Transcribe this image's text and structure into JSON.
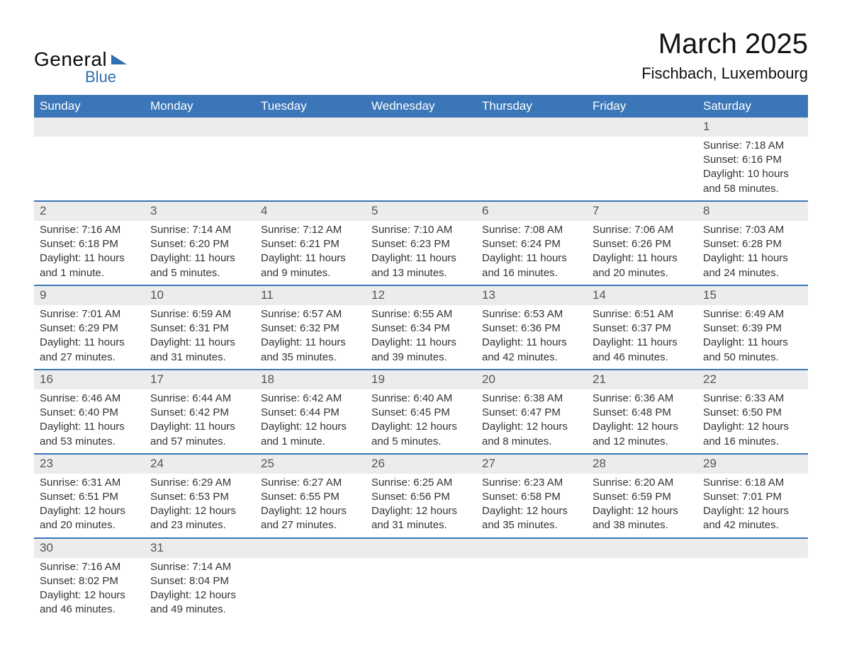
{
  "logo": {
    "general": "General",
    "blue": "Blue"
  },
  "title": {
    "month": "March 2025",
    "location": "Fischbach, Luxembourg"
  },
  "colors": {
    "brand": "#2f6fb3",
    "header_bg": "#3a76b8",
    "header_text": "#ffffff",
    "daynum_bg": "#ececec",
    "daynum_text": "#555555",
    "body_text": "#333333",
    "row_divider": "#3a76b8",
    "page_bg": "#ffffff"
  },
  "typography": {
    "month_fontsize_pt": 30,
    "location_fontsize_pt": 16,
    "header_fontsize_pt": 13,
    "daynum_fontsize_pt": 13,
    "body_fontsize_pt": 11
  },
  "structure": {
    "type": "calendar-table",
    "cols": 7,
    "rows": 6
  },
  "weekdays": [
    "Sunday",
    "Monday",
    "Tuesday",
    "Wednesday",
    "Thursday",
    "Friday",
    "Saturday"
  ],
  "weeks": [
    [
      null,
      null,
      null,
      null,
      null,
      null,
      {
        "d": "1",
        "sr": "Sunrise: 7:18 AM",
        "ss": "Sunset: 6:16 PM",
        "dl1": "Daylight: 10 hours",
        "dl2": "and 58 minutes."
      }
    ],
    [
      {
        "d": "2",
        "sr": "Sunrise: 7:16 AM",
        "ss": "Sunset: 6:18 PM",
        "dl1": "Daylight: 11 hours",
        "dl2": "and 1 minute."
      },
      {
        "d": "3",
        "sr": "Sunrise: 7:14 AM",
        "ss": "Sunset: 6:20 PM",
        "dl1": "Daylight: 11 hours",
        "dl2": "and 5 minutes."
      },
      {
        "d": "4",
        "sr": "Sunrise: 7:12 AM",
        "ss": "Sunset: 6:21 PM",
        "dl1": "Daylight: 11 hours",
        "dl2": "and 9 minutes."
      },
      {
        "d": "5",
        "sr": "Sunrise: 7:10 AM",
        "ss": "Sunset: 6:23 PM",
        "dl1": "Daylight: 11 hours",
        "dl2": "and 13 minutes."
      },
      {
        "d": "6",
        "sr": "Sunrise: 7:08 AM",
        "ss": "Sunset: 6:24 PM",
        "dl1": "Daylight: 11 hours",
        "dl2": "and 16 minutes."
      },
      {
        "d": "7",
        "sr": "Sunrise: 7:06 AM",
        "ss": "Sunset: 6:26 PM",
        "dl1": "Daylight: 11 hours",
        "dl2": "and 20 minutes."
      },
      {
        "d": "8",
        "sr": "Sunrise: 7:03 AM",
        "ss": "Sunset: 6:28 PM",
        "dl1": "Daylight: 11 hours",
        "dl2": "and 24 minutes."
      }
    ],
    [
      {
        "d": "9",
        "sr": "Sunrise: 7:01 AM",
        "ss": "Sunset: 6:29 PM",
        "dl1": "Daylight: 11 hours",
        "dl2": "and 27 minutes."
      },
      {
        "d": "10",
        "sr": "Sunrise: 6:59 AM",
        "ss": "Sunset: 6:31 PM",
        "dl1": "Daylight: 11 hours",
        "dl2": "and 31 minutes."
      },
      {
        "d": "11",
        "sr": "Sunrise: 6:57 AM",
        "ss": "Sunset: 6:32 PM",
        "dl1": "Daylight: 11 hours",
        "dl2": "and 35 minutes."
      },
      {
        "d": "12",
        "sr": "Sunrise: 6:55 AM",
        "ss": "Sunset: 6:34 PM",
        "dl1": "Daylight: 11 hours",
        "dl2": "and 39 minutes."
      },
      {
        "d": "13",
        "sr": "Sunrise: 6:53 AM",
        "ss": "Sunset: 6:36 PM",
        "dl1": "Daylight: 11 hours",
        "dl2": "and 42 minutes."
      },
      {
        "d": "14",
        "sr": "Sunrise: 6:51 AM",
        "ss": "Sunset: 6:37 PM",
        "dl1": "Daylight: 11 hours",
        "dl2": "and 46 minutes."
      },
      {
        "d": "15",
        "sr": "Sunrise: 6:49 AM",
        "ss": "Sunset: 6:39 PM",
        "dl1": "Daylight: 11 hours",
        "dl2": "and 50 minutes."
      }
    ],
    [
      {
        "d": "16",
        "sr": "Sunrise: 6:46 AM",
        "ss": "Sunset: 6:40 PM",
        "dl1": "Daylight: 11 hours",
        "dl2": "and 53 minutes."
      },
      {
        "d": "17",
        "sr": "Sunrise: 6:44 AM",
        "ss": "Sunset: 6:42 PM",
        "dl1": "Daylight: 11 hours",
        "dl2": "and 57 minutes."
      },
      {
        "d": "18",
        "sr": "Sunrise: 6:42 AM",
        "ss": "Sunset: 6:44 PM",
        "dl1": "Daylight: 12 hours",
        "dl2": "and 1 minute."
      },
      {
        "d": "19",
        "sr": "Sunrise: 6:40 AM",
        "ss": "Sunset: 6:45 PM",
        "dl1": "Daylight: 12 hours",
        "dl2": "and 5 minutes."
      },
      {
        "d": "20",
        "sr": "Sunrise: 6:38 AM",
        "ss": "Sunset: 6:47 PM",
        "dl1": "Daylight: 12 hours",
        "dl2": "and 8 minutes."
      },
      {
        "d": "21",
        "sr": "Sunrise: 6:36 AM",
        "ss": "Sunset: 6:48 PM",
        "dl1": "Daylight: 12 hours",
        "dl2": "and 12 minutes."
      },
      {
        "d": "22",
        "sr": "Sunrise: 6:33 AM",
        "ss": "Sunset: 6:50 PM",
        "dl1": "Daylight: 12 hours",
        "dl2": "and 16 minutes."
      }
    ],
    [
      {
        "d": "23",
        "sr": "Sunrise: 6:31 AM",
        "ss": "Sunset: 6:51 PM",
        "dl1": "Daylight: 12 hours",
        "dl2": "and 20 minutes."
      },
      {
        "d": "24",
        "sr": "Sunrise: 6:29 AM",
        "ss": "Sunset: 6:53 PM",
        "dl1": "Daylight: 12 hours",
        "dl2": "and 23 minutes."
      },
      {
        "d": "25",
        "sr": "Sunrise: 6:27 AM",
        "ss": "Sunset: 6:55 PM",
        "dl1": "Daylight: 12 hours",
        "dl2": "and 27 minutes."
      },
      {
        "d": "26",
        "sr": "Sunrise: 6:25 AM",
        "ss": "Sunset: 6:56 PM",
        "dl1": "Daylight: 12 hours",
        "dl2": "and 31 minutes."
      },
      {
        "d": "27",
        "sr": "Sunrise: 6:23 AM",
        "ss": "Sunset: 6:58 PM",
        "dl1": "Daylight: 12 hours",
        "dl2": "and 35 minutes."
      },
      {
        "d": "28",
        "sr": "Sunrise: 6:20 AM",
        "ss": "Sunset: 6:59 PM",
        "dl1": "Daylight: 12 hours",
        "dl2": "and 38 minutes."
      },
      {
        "d": "29",
        "sr": "Sunrise: 6:18 AM",
        "ss": "Sunset: 7:01 PM",
        "dl1": "Daylight: 12 hours",
        "dl2": "and 42 minutes."
      }
    ],
    [
      {
        "d": "30",
        "sr": "Sunrise: 7:16 AM",
        "ss": "Sunset: 8:02 PM",
        "dl1": "Daylight: 12 hours",
        "dl2": "and 46 minutes."
      },
      {
        "d": "31",
        "sr": "Sunrise: 7:14 AM",
        "ss": "Sunset: 8:04 PM",
        "dl1": "Daylight: 12 hours",
        "dl2": "and 49 minutes."
      },
      null,
      null,
      null,
      null,
      null
    ]
  ]
}
